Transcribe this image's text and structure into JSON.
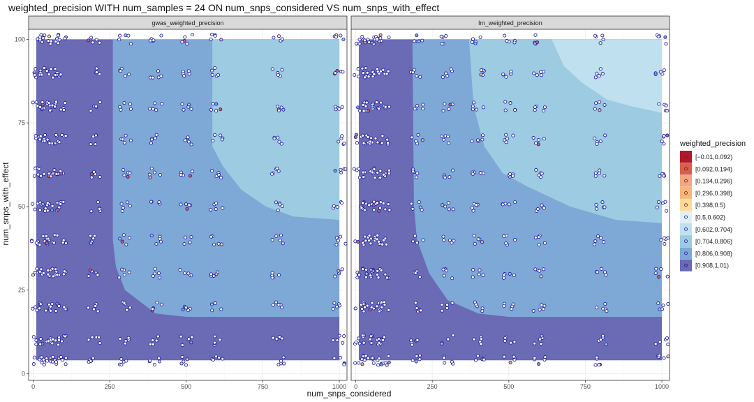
{
  "chart_data": {
    "type": "heatmap",
    "title": "weighted_precision WITH num_samples = 24 ON num_snps_considered VS num_snps_with_effect",
    "xlabel": "num_snps_considered",
    "ylabel": "num_snps_with_effect",
    "xlim": [
      -15,
      1025
    ],
    "ylim": [
      -2,
      103
    ],
    "x_ticks": [
      0,
      250,
      500,
      750,
      1000
    ],
    "y_ticks": [
      0,
      25,
      50,
      75,
      100
    ],
    "grid": true,
    "legend_position": "right",
    "legend": {
      "title": "weighted_precision",
      "items": [
        {
          "label": "[−0.01,0.092)",
          "color": "#b2182b"
        },
        {
          "label": "[0.092,0.194)",
          "color": "#d6604d"
        },
        {
          "label": "[0.194,0.296)",
          "color": "#f4a582"
        },
        {
          "label": "[0.296,0.398)",
          "color": "#f7b77a"
        },
        {
          "label": "[0.398,0.5)",
          "color": "#fddb9b"
        },
        {
          "label": "[0.5,0.602)",
          "color": "#e0f0f6"
        },
        {
          "label": "[0.602,0.704)",
          "color": "#bfe0ee"
        },
        {
          "label": "[0.704,0.806)",
          "color": "#9ccbe2"
        },
        {
          "label": "[0.806,0.908)",
          "color": "#7ea8d6"
        },
        {
          "label": "[0.908,1.01)",
          "color": "#6b6ab4"
        }
      ]
    },
    "region_extent": {
      "x": [
        10,
        1000
      ],
      "y": [
        4,
        100
      ]
    },
    "x_sample_values": [
      15,
      40,
      65,
      90,
      200,
      300,
      400,
      500,
      600,
      800,
      1000
    ],
    "y_sample_values": [
      4,
      10,
      20,
      30,
      40,
      50,
      60,
      70,
      80,
      90,
      100
    ],
    "panels": [
      {
        "name": "gwas_weighted_precision",
        "level_boundaries": [
          {
            "level": "[0.806,0.908)",
            "points": [
              [
                260,
                100
              ],
              [
                260,
                40
              ],
              [
                270,
                32
              ],
              [
                300,
                25
              ],
              [
                400,
                18
              ],
              [
                500,
                17
              ],
              [
                1000,
                17
              ]
            ]
          },
          {
            "level": "[0.704,0.806)",
            "points": [
              [
                585,
                100
              ],
              [
                585,
                68
              ],
              [
                620,
                62
              ],
              [
                680,
                55
              ],
              [
                760,
                50
              ],
              [
                850,
                47
              ],
              [
                1000,
                46
              ]
            ]
          }
        ]
      },
      {
        "name": "lm_weighted_precision",
        "level_boundaries": [
          {
            "level": "[0.806,0.908)",
            "points": [
              [
                185,
                100
              ],
              [
                190,
                50
              ],
              [
                200,
                40
              ],
              [
                240,
                30
              ],
              [
                300,
                22
              ],
              [
                400,
                18
              ],
              [
                500,
                17
              ],
              [
                700,
                17
              ],
              [
                1000,
                17
              ]
            ]
          },
          {
            "level": "[0.704,0.806)",
            "points": [
              [
                370,
                100
              ],
              [
                385,
                80
              ],
              [
                420,
                68
              ],
              [
                480,
                60
              ],
              [
                560,
                56
              ],
              [
                700,
                50
              ],
              [
                850,
                46
              ],
              [
                1000,
                45
              ]
            ]
          },
          {
            "level": "[0.602,0.704)",
            "points": [
              [
                640,
                100
              ],
              [
                680,
                92
              ],
              [
                740,
                87
              ],
              [
                820,
                82
              ],
              [
                900,
                80
              ],
              [
                1000,
                78
              ]
            ]
          }
        ]
      }
    ]
  }
}
